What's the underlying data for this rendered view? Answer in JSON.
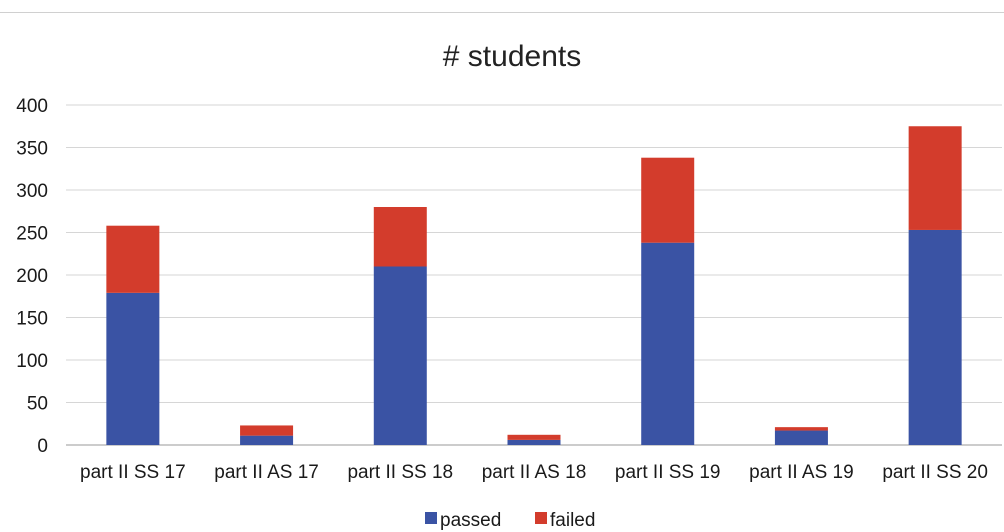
{
  "chart_data": {
    "type": "bar",
    "stacked": true,
    "title": "# students",
    "xlabel": "",
    "ylabel": "",
    "categories": [
      "part II SS 17",
      "part II AS 17",
      "part II SS 18",
      "part II AS 18",
      "part II SS 19",
      "part II AS 19",
      "part II SS 20"
    ],
    "series": [
      {
        "name": "passed",
        "color": "#3a53a4",
        "values": [
          179,
          11,
          210,
          6,
          238,
          17,
          253
        ]
      },
      {
        "name": "failed",
        "color": "#d33c2c",
        "values": [
          79,
          12,
          70,
          6,
          100,
          4,
          122
        ]
      }
    ],
    "ylim": [
      0,
      400
    ],
    "yticks": [
      "0",
      "50",
      "100",
      "150",
      "200",
      "250",
      "300",
      "350",
      "400"
    ],
    "grid": true,
    "legend_position": "bottom"
  }
}
